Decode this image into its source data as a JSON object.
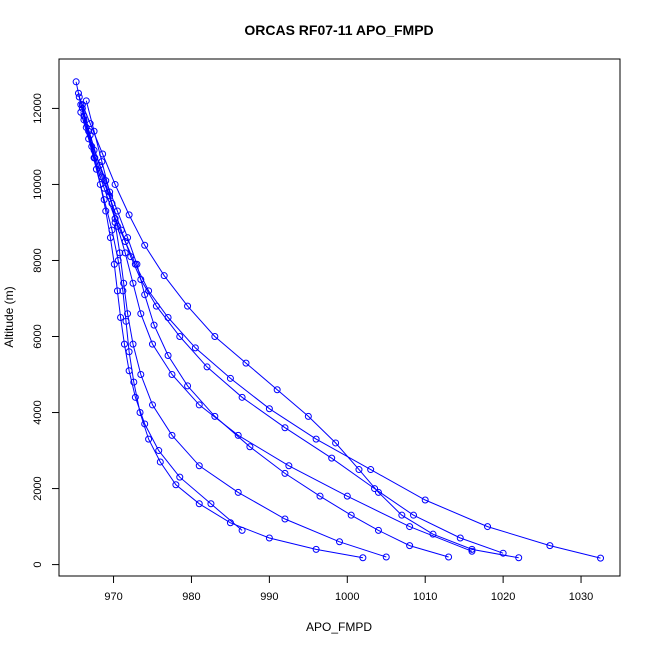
{
  "chart_data": {
    "type": "line",
    "title": "ORCAS RF07-11 APO_FMPD",
    "xlabel": "APO_FMPD",
    "ylabel": "Altitude (m)",
    "xlim": [
      963,
      1035
    ],
    "ylim": [
      -300,
      13300
    ],
    "x_ticks": [
      970,
      980,
      990,
      1000,
      1010,
      1020,
      1030
    ],
    "y_ticks": [
      0,
      2000,
      4000,
      6000,
      8000,
      10000,
      12000
    ],
    "marker": "open-circle",
    "color": "#0000ff",
    "grid": false,
    "series": [
      {
        "x": [
          965.2,
          965.8,
          966.5,
          967.5,
          968.8,
          970.2,
          971.5,
          972.8,
          974.5,
          977.0,
          980.5,
          985.0,
          990.0,
          996.0,
          1003.0,
          1010.0,
          1018.0,
          1026.0,
          1032.5
        ],
        "y": [
          12700,
          12100,
          11500,
          10700,
          9900,
          9100,
          8500,
          7900,
          7200,
          6500,
          5700,
          4900,
          4100,
          3300,
          2500,
          1700,
          1000,
          500,
          170
        ]
      },
      {
        "x": [
          965.5,
          966.2,
          967.2,
          968.5,
          969.8,
          971.0,
          972.2,
          973.5,
          975.5,
          978.5,
          982.0,
          986.5,
          992.0,
          998.0,
          1003.5,
          1008.5,
          1014.5,
          1020.0
        ],
        "y": [
          12400,
          11800,
          11000,
          10200,
          9500,
          8800,
          8100,
          7500,
          6800,
          6000,
          5200,
          4400,
          3600,
          2800,
          2000,
          1300,
          700,
          300
        ]
      },
      {
        "x": [
          966.0,
          967.0,
          968.2,
          969.5,
          970.5,
          971.5,
          972.5,
          973.5,
          975.0,
          977.5,
          981.0,
          986.0,
          992.5,
          1000.0,
          1008.0,
          1016.0
        ],
        "y": [
          12000,
          11300,
          10500,
          9700,
          8900,
          8200,
          7400,
          6600,
          5800,
          5000,
          4200,
          3400,
          2600,
          1800,
          1000,
          350
        ]
      },
      {
        "x": [
          966.5,
          967.5,
          968.5,
          969.5,
          970.2,
          970.8,
          971.3,
          971.8,
          972.5,
          973.5,
          975.0,
          977.5,
          981.0,
          986.0,
          992.0,
          999.0,
          1005.0
        ],
        "y": [
          12200,
          11400,
          10600,
          9800,
          9000,
          8200,
          7400,
          6600,
          5800,
          5000,
          4200,
          3400,
          2600,
          1900,
          1200,
          600,
          200
        ]
      },
      {
        "x": [
          965.8,
          966.8,
          967.8,
          968.8,
          969.8,
          970.6,
          971.2,
          971.6,
          972.0,
          972.6,
          973.4,
          974.5,
          976.0,
          978.0,
          981.0,
          985.0,
          990.0,
          996.0,
          1002.0
        ],
        "y": [
          11900,
          11200,
          10400,
          9600,
          8800,
          8000,
          7200,
          6400,
          5600,
          4800,
          4000,
          3300,
          2700,
          2100,
          1600,
          1100,
          700,
          400,
          180
        ]
      },
      {
        "x": [
          966.2,
          967.5,
          969.0,
          970.5,
          971.8,
          973.0,
          974.0,
          975.2,
          977.0,
          979.5,
          983.0,
          987.5,
          992.0,
          996.5,
          1000.5,
          1004.0,
          1008.0,
          1013.0
        ],
        "y": [
          11700,
          10900,
          10100,
          9300,
          8600,
          7900,
          7100,
          6300,
          5500,
          4700,
          3900,
          3100,
          2400,
          1800,
          1300,
          900,
          500,
          200
        ]
      },
      {
        "x": [
          966.0,
          966.8,
          967.6,
          968.3,
          969.0,
          969.6,
          970.1,
          970.5,
          970.9,
          971.4,
          972.0,
          972.8,
          974.0,
          975.8,
          978.5,
          982.5,
          986.5
        ],
        "y": [
          12100,
          11400,
          10700,
          10000,
          9300,
          8600,
          7900,
          7200,
          6500,
          5800,
          5100,
          4400,
          3700,
          3000,
          2300,
          1600,
          900
        ]
      },
      {
        "x": [
          965.6,
          967.0,
          968.6,
          970.2,
          972.0,
          974.0,
          976.5,
          979.5,
          983.0,
          987.0,
          991.0,
          995.0,
          998.5,
          1001.5,
          1004.0,
          1007.0,
          1011.0,
          1016.0,
          1022.0
        ],
        "y": [
          12300,
          11600,
          10800,
          10000,
          9200,
          8400,
          7600,
          6800,
          6000,
          5300,
          4600,
          3900,
          3200,
          2500,
          1900,
          1300,
          800,
          400,
          180
        ]
      }
    ]
  }
}
